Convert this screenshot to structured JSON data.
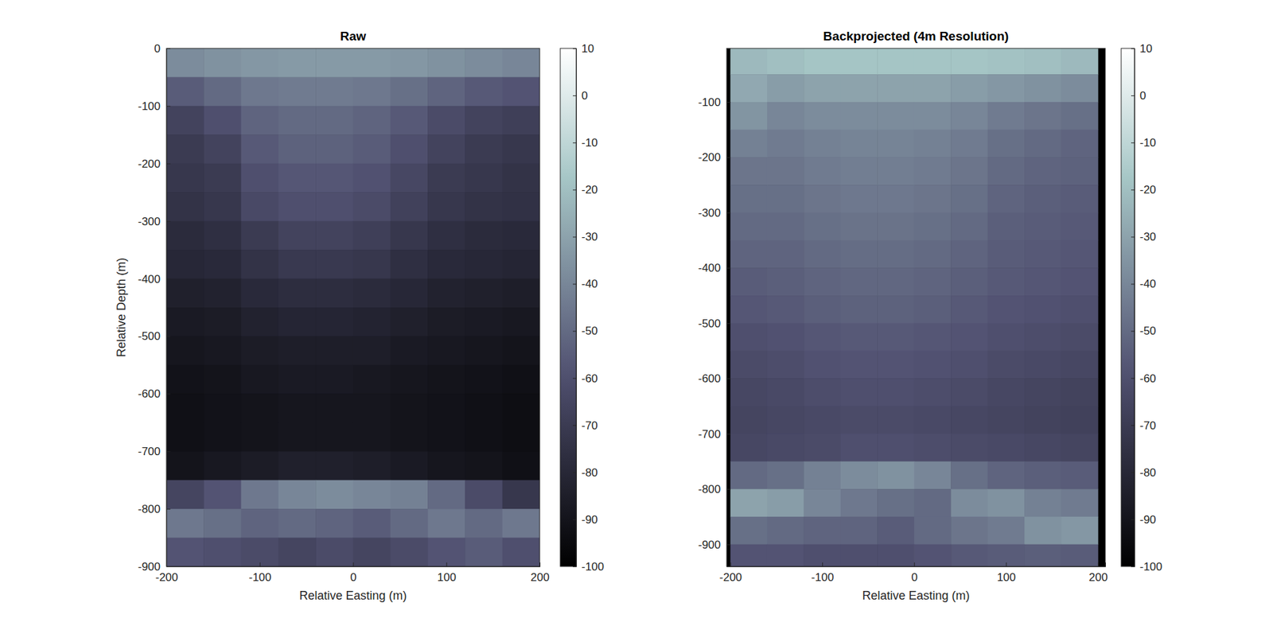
{
  "chart_data": [
    {
      "type": "heatmap",
      "title": "Raw",
      "xlabel": "Relative Easting (m)",
      "ylabel": "Relative Depth (m)",
      "x": [
        -180,
        -140,
        -100,
        -60,
        -20,
        20,
        60,
        100,
        140,
        180
      ],
      "y": [
        -25,
        -75,
        -125,
        -175,
        -225,
        -275,
        -325,
        -375,
        -425,
        -475,
        -525,
        -575,
        -625,
        -675,
        -725,
        -775,
        -825,
        -875
      ],
      "values": [
        [
          -38,
          -36,
          -34,
          -33,
          -33,
          -33,
          -34,
          -36,
          -38,
          -40
        ],
        [
          -55,
          -50,
          -45,
          -44,
          -44,
          -45,
          -48,
          -52,
          -56,
          -58
        ],
        [
          -66,
          -60,
          -52,
          -50,
          -50,
          -52,
          -56,
          -62,
          -66,
          -68
        ],
        [
          -70,
          -66,
          -56,
          -53,
          -53,
          -55,
          -60,
          -66,
          -70,
          -72
        ],
        [
          -72,
          -70,
          -60,
          -57,
          -57,
          -59,
          -64,
          -70,
          -72,
          -74
        ],
        [
          -74,
          -72,
          -63,
          -60,
          -60,
          -62,
          -67,
          -72,
          -74,
          -75
        ],
        [
          -78,
          -76,
          -70,
          -66,
          -66,
          -68,
          -72,
          -76,
          -78,
          -79
        ],
        [
          -80,
          -79,
          -74,
          -71,
          -71,
          -72,
          -76,
          -79,
          -80,
          -81
        ],
        [
          -84,
          -83,
          -79,
          -77,
          -77,
          -78,
          -80,
          -83,
          -84,
          -85
        ],
        [
          -87,
          -86,
          -83,
          -81,
          -81,
          -82,
          -84,
          -86,
          -87,
          -88
        ],
        [
          -89,
          -88,
          -86,
          -85,
          -85,
          -85,
          -87,
          -88,
          -89,
          -90
        ],
        [
          -91,
          -90,
          -88,
          -87,
          -87,
          -88,
          -89,
          -90,
          -91,
          -92
        ],
        [
          -92,
          -91,
          -90,
          -89,
          -89,
          -89,
          -90,
          -91,
          -92,
          -93
        ],
        [
          -92,
          -91,
          -90,
          -89,
          -89,
          -89,
          -90,
          -91,
          -92,
          -93
        ],
        [
          -90,
          -88,
          -86,
          -84,
          -84,
          -85,
          -87,
          -89,
          -90,
          -92
        ],
        [
          -65,
          -58,
          -45,
          -40,
          -38,
          -40,
          -42,
          -50,
          -62,
          -72
        ],
        [
          -45,
          -48,
          -52,
          -50,
          -52,
          -55,
          -50,
          -45,
          -50,
          -45
        ],
        [
          -58,
          -60,
          -62,
          -65,
          -62,
          -65,
          -62,
          -58,
          -55,
          -60
        ]
      ],
      "xlim": [
        -200,
        200
      ],
      "ylim": [
        -900,
        0
      ],
      "xticks": [
        -200,
        -100,
        0,
        100,
        200
      ],
      "yticks": [
        -900,
        -800,
        -700,
        -600,
        -500,
        -400,
        -300,
        -200,
        -100,
        0
      ],
      "zlim": [
        -100,
        10
      ],
      "zticks": [
        -100,
        -90,
        -80,
        -70,
        -60,
        -50,
        -40,
        -30,
        -20,
        -10,
        0,
        10
      ]
    },
    {
      "type": "heatmap",
      "title": "Backprojected (4m Resolution)",
      "xlabel": "Relative Easting (m)",
      "x": [
        -180,
        -140,
        -100,
        -60,
        -20,
        20,
        60,
        100,
        140,
        180
      ],
      "y": [
        -25,
        -75,
        -125,
        -175,
        -225,
        -275,
        -325,
        -375,
        -425,
        -475,
        -525,
        -575,
        -625,
        -675,
        -725,
        -775,
        -825,
        -875,
        -925
      ],
      "values": [
        [
          -22,
          -20,
          -18,
          -18,
          -18,
          -18,
          -18,
          -19,
          -20,
          -22
        ],
        [
          -28,
          -32,
          -30,
          -30,
          -30,
          -30,
          -32,
          -34,
          -36,
          -38
        ],
        [
          -35,
          -40,
          -38,
          -38,
          -38,
          -38,
          -40,
          -44,
          -46,
          -48
        ],
        [
          -42,
          -44,
          -42,
          -41,
          -41,
          -42,
          -44,
          -48,
          -50,
          -52
        ],
        [
          -46,
          -46,
          -44,
          -43,
          -43,
          -44,
          -46,
          -50,
          -52,
          -53
        ],
        [
          -48,
          -48,
          -46,
          -45,
          -45,
          -46,
          -48,
          -52,
          -54,
          -55
        ],
        [
          -50,
          -50,
          -48,
          -47,
          -47,
          -48,
          -50,
          -54,
          -55,
          -56
        ],
        [
          -52,
          -52,
          -50,
          -49,
          -49,
          -50,
          -52,
          -55,
          -56,
          -57
        ],
        [
          -55,
          -54,
          -52,
          -51,
          -51,
          -52,
          -54,
          -56,
          -57,
          -58
        ],
        [
          -57,
          -56,
          -54,
          -53,
          -53,
          -54,
          -56,
          -58,
          -59,
          -60
        ],
        [
          -60,
          -59,
          -57,
          -56,
          -56,
          -57,
          -58,
          -60,
          -61,
          -62
        ],
        [
          -62,
          -61,
          -59,
          -58,
          -58,
          -59,
          -60,
          -62,
          -63,
          -64
        ],
        [
          -64,
          -63,
          -61,
          -60,
          -60,
          -61,
          -62,
          -64,
          -65,
          -66
        ],
        [
          -65,
          -64,
          -63,
          -62,
          -62,
          -63,
          -64,
          -65,
          -66,
          -67
        ],
        [
          -64,
          -63,
          -62,
          -60,
          -60,
          -61,
          -62,
          -63,
          -64,
          -65
        ],
        [
          -50,
          -48,
          -42,
          -38,
          -36,
          -40,
          -48,
          -52,
          -54,
          -55
        ],
        [
          -30,
          -32,
          -40,
          -45,
          -48,
          -50,
          -38,
          -36,
          -42,
          -44
        ],
        [
          -48,
          -50,
          -52,
          -52,
          -55,
          -50,
          -46,
          -44,
          -36,
          -34
        ],
        [
          -58,
          -58,
          -60,
          -60,
          -60,
          -58,
          -56,
          -55,
          -54,
          -55
        ]
      ],
      "xlim": [
        -204,
        208
      ],
      "ylim": [
        -940,
        -3
      ],
      "xticks": [
        -200,
        -100,
        0,
        100,
        200
      ],
      "yticks": [
        -900,
        -800,
        -700,
        -600,
        -500,
        -400,
        -300,
        -200,
        -100
      ],
      "zlim": [
        -100,
        10
      ],
      "zticks": [
        -100,
        -90,
        -80,
        -70,
        -60,
        -50,
        -40,
        -30,
        -20,
        -10,
        0,
        10
      ]
    }
  ]
}
